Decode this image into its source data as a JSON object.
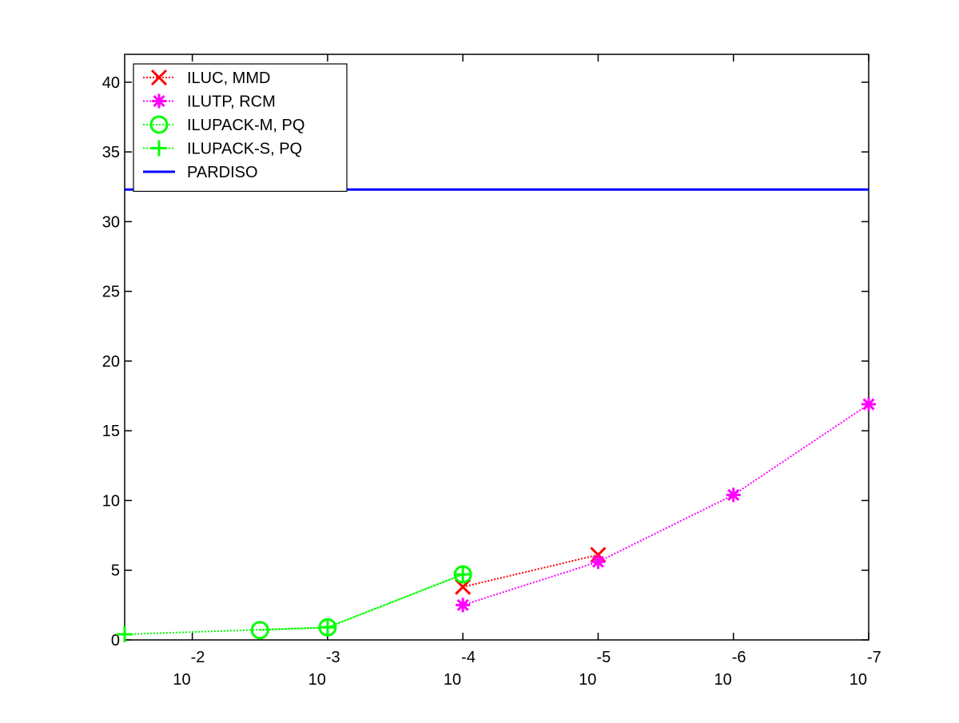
{
  "chart_data": {
    "type": "line",
    "title": "",
    "xlabel": "",
    "ylabel": "",
    "x_scale": "log",
    "x_direction": "reversed",
    "xlim": [
      0.03162,
      1e-07
    ],
    "ylim": [
      0,
      42
    ],
    "x_ticks": [
      {
        "value": 0.01,
        "base": "10",
        "exponent": "-2"
      },
      {
        "value": 0.001,
        "base": "10",
        "exponent": "-3"
      },
      {
        "value": 0.0001,
        "base": "10",
        "exponent": "-4"
      },
      {
        "value": 1e-05,
        "base": "10",
        "exponent": "-5"
      },
      {
        "value": 1e-06,
        "base": "10",
        "exponent": "-6"
      },
      {
        "value": 1e-07,
        "base": "10",
        "exponent": "-7"
      }
    ],
    "y_ticks": [
      {
        "value": 0,
        "label": "0"
      },
      {
        "value": 5,
        "label": "5"
      },
      {
        "value": 10,
        "label": "10"
      },
      {
        "value": 15,
        "label": "15"
      },
      {
        "value": 20,
        "label": "20"
      },
      {
        "value": 25,
        "label": "25"
      },
      {
        "value": 30,
        "label": "30"
      },
      {
        "value": 35,
        "label": "35"
      },
      {
        "value": 40,
        "label": "40"
      }
    ],
    "grid": false,
    "legend_position": "top-left",
    "series": [
      {
        "name": "ILUC, MMD",
        "color": "#ff0000",
        "line_style": "dotted",
        "marker": "x",
        "x": [
          0.0001,
          1e-05
        ],
        "y": [
          3.8,
          6.1
        ]
      },
      {
        "name": "ILUTP, RCM",
        "color": "#ff00ff",
        "line_style": "dotted",
        "marker": "asterisk",
        "x": [
          0.0001,
          1e-05,
          1e-06,
          1e-07
        ],
        "y": [
          2.5,
          5.6,
          10.4,
          16.9
        ]
      },
      {
        "name": "ILUPACK-M, PQ",
        "color": "#00ff00",
        "line_style": "dotted",
        "marker": "circle",
        "x": [
          0.003162,
          0.001,
          0.0001
        ],
        "y": [
          0.7,
          0.9,
          4.7
        ]
      },
      {
        "name": "ILUPACK-S, PQ",
        "color": "#00ff00",
        "line_style": "dotted",
        "marker": "plus",
        "x": [
          0.03162,
          0.001,
          0.0001
        ],
        "y": [
          0.4,
          0.9,
          4.7
        ]
      },
      {
        "name": "PARDISO",
        "color": "#0000ff",
        "line_style": "solid",
        "marker": "none",
        "x": [
          0.03162,
          1e-07
        ],
        "y": [
          32.3,
          32.3
        ]
      }
    ]
  }
}
